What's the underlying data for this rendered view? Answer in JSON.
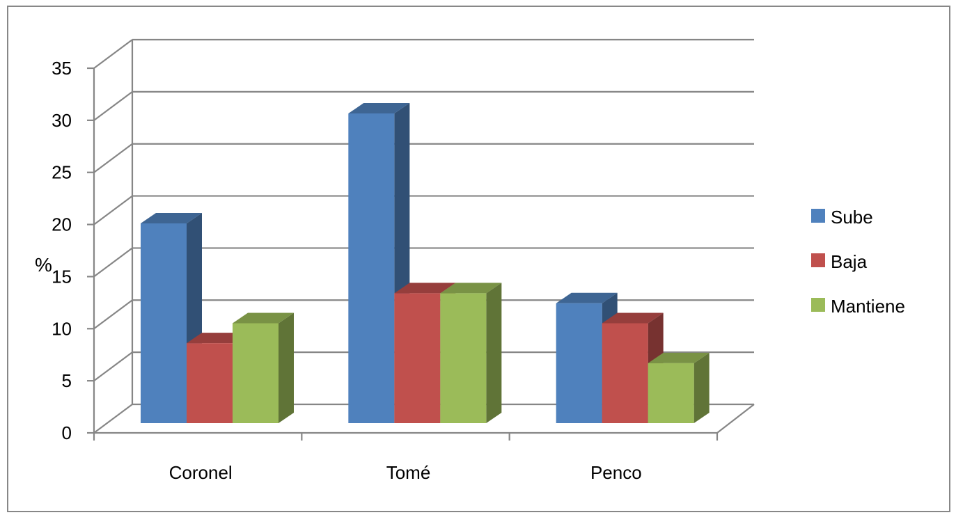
{
  "chart_data": {
    "type": "bar",
    "style": "3d-clustered-column",
    "categories": [
      "Coronel",
      "Tomé",
      "Penco"
    ],
    "series": [
      {
        "name": "Sube",
        "values": [
          20,
          31,
          12
        ],
        "color": "#4F81BD"
      },
      {
        "name": "Baja",
        "values": [
          8,
          13,
          10
        ],
        "color": "#C0504D"
      },
      {
        "name": "Mantiene",
        "values": [
          10,
          13,
          6
        ],
        "color": "#9BBB59"
      }
    ],
    "ylabel": "%",
    "xlabel": "",
    "ylim": [
      0,
      35
    ],
    "yticks": [
      "0",
      "5",
      "10",
      "15",
      "20",
      "25",
      "30",
      "35"
    ],
    "grid": true,
    "legend_position": "right"
  }
}
